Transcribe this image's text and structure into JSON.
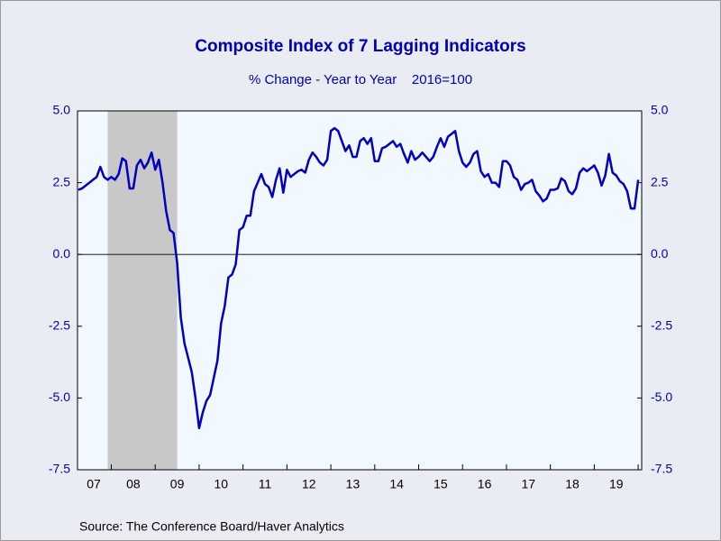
{
  "chart_data": {
    "type": "line",
    "title": "Composite Index of 7 Lagging Indicators",
    "subtitle": "% Change - Year to Year    2016=100",
    "source": "Source:  The Conference Board/Haver Analytics",
    "color": "#0000c0",
    "recession": [
      2007.917,
      2009.5
    ],
    "xlim": [
      2007.23,
      2020.08
    ],
    "xticks": [
      2008,
      2009,
      2010,
      2011,
      2012,
      2013,
      2014,
      2015,
      2016,
      2017,
      2018,
      2019,
      2020
    ],
    "xtick_labels": [
      {
        "value": 2007.6,
        "label": "07"
      },
      {
        "value": 2008.5,
        "label": "08"
      },
      {
        "value": 2009.5,
        "label": "09"
      },
      {
        "value": 2010.5,
        "label": "10"
      },
      {
        "value": 2011.5,
        "label": "11"
      },
      {
        "value": 2012.5,
        "label": "12"
      },
      {
        "value": 2013.5,
        "label": "13"
      },
      {
        "value": 2014.5,
        "label": "14"
      },
      {
        "value": 2015.5,
        "label": "15"
      },
      {
        "value": 2016.5,
        "label": "16"
      },
      {
        "value": 2017.5,
        "label": "17"
      },
      {
        "value": 2018.5,
        "label": "18"
      },
      {
        "value": 2019.5,
        "label": "19"
      }
    ],
    "ylim": [
      -7.5,
      5.0
    ],
    "yticks": [
      {
        "value": 5.0,
        "label": "5.0"
      },
      {
        "value": 2.5,
        "label": "2.5"
      },
      {
        "value": 0,
        "label": "0.0"
      },
      {
        "value": -2.5,
        "label": "-2.5"
      },
      {
        "value": -5.0,
        "label": "-5.0"
      },
      {
        "value": -7.5,
        "label": "-7.5"
      }
    ],
    "x": [
      2007.25,
      2007.333,
      2007.417,
      2007.5,
      2007.583,
      2007.667,
      2007.75,
      2007.833,
      2007.917,
      2008,
      2008.083,
      2008.167,
      2008.25,
      2008.333,
      2008.417,
      2008.5,
      2008.583,
      2008.667,
      2008.75,
      2008.833,
      2008.917,
      2009,
      2009.083,
      2009.167,
      2009.25,
      2009.333,
      2009.417,
      2009.5,
      2009.583,
      2009.667,
      2009.75,
      2009.833,
      2009.917,
      2010,
      2010.083,
      2010.167,
      2010.25,
      2010.333,
      2010.417,
      2010.5,
      2010.583,
      2010.667,
      2010.75,
      2010.833,
      2010.917,
      2011,
      2011.083,
      2011.167,
      2011.25,
      2011.333,
      2011.417,
      2011.5,
      2011.583,
      2011.667,
      2011.75,
      2011.833,
      2011.917,
      2012,
      2012.083,
      2012.167,
      2012.25,
      2012.333,
      2012.417,
      2012.5,
      2012.583,
      2012.667,
      2012.75,
      2012.833,
      2012.917,
      2013,
      2013.083,
      2013.167,
      2013.25,
      2013.333,
      2013.417,
      2013.5,
      2013.583,
      2013.667,
      2013.75,
      2013.833,
      2013.917,
      2014,
      2014.083,
      2014.167,
      2014.25,
      2014.333,
      2014.417,
      2014.5,
      2014.583,
      2014.667,
      2014.75,
      2014.833,
      2014.917,
      2015,
      2015.083,
      2015.167,
      2015.25,
      2015.333,
      2015.417,
      2015.5,
      2015.583,
      2015.667,
      2015.75,
      2015.833,
      2015.917,
      2016,
      2016.083,
      2016.167,
      2016.25,
      2016.333,
      2016.417,
      2016.5,
      2016.583,
      2016.667,
      2016.75,
      2016.833,
      2016.917,
      2017,
      2017.083,
      2017.167,
      2017.25,
      2017.333,
      2017.417,
      2017.5,
      2017.583,
      2017.667,
      2017.75,
      2017.833,
      2017.917,
      2018,
      2018.083,
      2018.167,
      2018.25,
      2018.333,
      2018.417,
      2018.5,
      2018.583,
      2018.667,
      2018.75,
      2018.833,
      2018.917,
      2019,
      2019.083,
      2019.167,
      2019.25,
      2019.333,
      2019.417,
      2019.5,
      2019.583,
      2019.667,
      2019.75,
      2019.833,
      2019.917,
      2020
    ],
    "values": [
      2.25,
      2.3,
      2.4,
      2.5,
      2.6,
      2.7,
      3.05,
      2.7,
      2.6,
      2.7,
      2.6,
      2.8,
      3.35,
      3.25,
      2.3,
      2.3,
      3.1,
      3.3,
      3.0,
      3.2,
      3.55,
      2.95,
      3.3,
      2.5,
      1.5,
      0.85,
      0.75,
      -0.3,
      -2.2,
      -3.1,
      -3.6,
      -4.1,
      -5.0,
      -6.05,
      -5.5,
      -5.1,
      -4.9,
      -4.3,
      -3.7,
      -2.4,
      -1.8,
      -0.8,
      -0.7,
      -0.35,
      0.85,
      0.95,
      1.35,
      1.35,
      2.2,
      2.5,
      2.8,
      2.45,
      2.35,
      2.0,
      2.6,
      3.0,
      2.15,
      2.95,
      2.7,
      2.8,
      2.9,
      2.95,
      2.85,
      3.3,
      3.55,
      3.4,
      3.2,
      3.1,
      3.3,
      4.3,
      4.4,
      4.3,
      3.95,
      3.6,
      3.8,
      3.4,
      3.4,
      3.95,
      4.05,
      3.85,
      4.05,
      3.25,
      3.25,
      3.7,
      3.75,
      3.85,
      3.95,
      3.75,
      3.85,
      3.5,
      3.2,
      3.6,
      3.3,
      3.4,
      3.55,
      3.4,
      3.25,
      3.4,
      3.75,
      4.05,
      3.75,
      4.1,
      4.2,
      4.3,
      3.6,
      3.2,
      3.05,
      3.2,
      3.5,
      3.6,
      2.9,
      2.7,
      2.8,
      2.5,
      2.5,
      2.35,
      3.25,
      3.25,
      3.1,
      2.7,
      2.6,
      2.25,
      2.45,
      2.5,
      2.6,
      2.2,
      2.05,
      1.85,
      1.95,
      2.25,
      2.25,
      2.3,
      2.65,
      2.55,
      2.2,
      2.1,
      2.3,
      2.85,
      3.0,
      2.9,
      3.0,
      3.1,
      2.85,
      2.4,
      2.75,
      3.5,
      2.85,
      2.75,
      2.55,
      2.45,
      2.2,
      1.6,
      1.6,
      2.6
    ]
  }
}
